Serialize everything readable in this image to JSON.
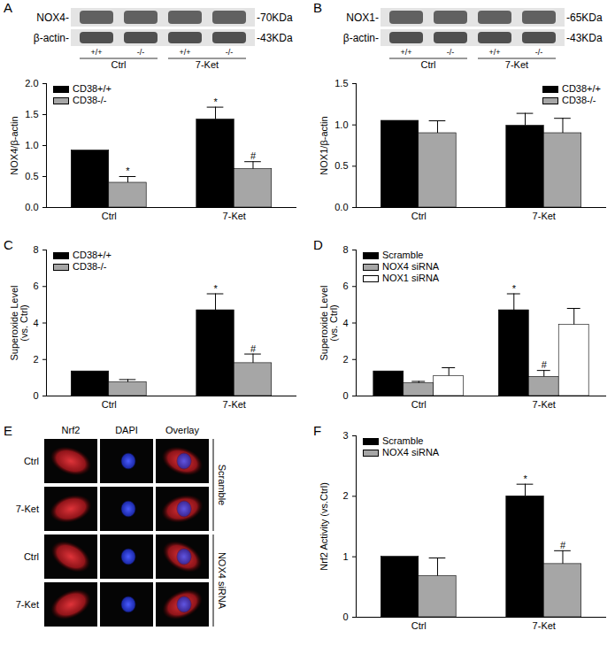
{
  "chart_data": [
    {
      "type": "bar",
      "y_label": "NOX4/β-actin",
      "categories": [
        "Ctrl",
        "7-Ket"
      ],
      "ylim": [
        0,
        2
      ],
      "yticks": [
        {
          "value": 0,
          "label": "0.0"
        },
        0.5,
        {
          "value": 1,
          "label": "1.0"
        },
        1.5,
        {
          "value": 2,
          "label": "2.0"
        }
      ],
      "legend": "top-left",
      "series": [
        {
          "name": "CD38+/+",
          "color": "#000000",
          "values": [
            0.92,
            1.42
          ],
          "errors": [
            null,
            0.2
          ],
          "annotations": [
            null,
            "*"
          ]
        },
        {
          "name": "CD38-/-",
          "color": "#a6a6a6",
          "values": [
            0.4,
            0.62
          ],
          "errors": [
            0.1,
            0.12
          ],
          "annotations": [
            "*",
            "#"
          ]
        }
      ]
    },
    {
      "type": "bar",
      "y_label": "NOX1/β-actin",
      "categories": [
        "Ctrl",
        "7-Ket"
      ],
      "ylim": [
        0,
        1.5
      ],
      "yticks": [
        {
          "value": 0,
          "label": "0.0"
        },
        0.5,
        {
          "value": 1,
          "label": "1.0"
        },
        1.5
      ],
      "legend": "top-right",
      "series": [
        {
          "name": "CD38+/+",
          "color": "#000000",
          "values": [
            1.05,
            0.99
          ],
          "errors": [
            null,
            0.15
          ]
        },
        {
          "name": "CD38-/-",
          "color": "#a6a6a6",
          "values": [
            0.9,
            0.9
          ],
          "errors": [
            0.15,
            0.18
          ]
        }
      ]
    },
    {
      "type": "bar",
      "panel": "C",
      "y_label": "Superoxide Level\n(vs. Ctrl)",
      "categories": [
        "Ctrl",
        "7-Ket"
      ],
      "ylim": [
        0,
        8
      ],
      "yticks": [
        0,
        2,
        4,
        6,
        8
      ],
      "legend": "top-left",
      "series": [
        {
          "name": "CD38+/+",
          "color": "#000000",
          "values": [
            1.35,
            4.7
          ],
          "errors": [
            null,
            0.9
          ],
          "annotations": [
            null,
            "*"
          ]
        },
        {
          "name": "CD38-/-",
          "color": "#a6a6a6",
          "values": [
            0.75,
            1.8
          ],
          "errors": [
            0.15,
            0.5
          ],
          "annotations": [
            null,
            "#"
          ]
        }
      ]
    },
    {
      "type": "bar",
      "panel": "D",
      "y_label": "Superoxide Level\n(vs. Ctrl)",
      "categories": [
        "Ctrl",
        "7-Ket"
      ],
      "ylim": [
        0,
        8
      ],
      "yticks": [
        0,
        2,
        4,
        6,
        8
      ],
      "legend": "top-left",
      "series": [
        {
          "name": "Scramble",
          "color": "#000000",
          "values": [
            1.35,
            4.7
          ],
          "errors": [
            null,
            0.9
          ],
          "annotations": [
            null,
            "*"
          ]
        },
        {
          "name": "NOX4 siRNA",
          "color": "#a6a6a6",
          "values": [
            0.7,
            1.05
          ],
          "errors": [
            0.1,
            0.35
          ],
          "annotations": [
            null,
            "#"
          ]
        },
        {
          "name": "NOX1 siRNA",
          "color": "#ffffff",
          "values": [
            1.1,
            3.9
          ],
          "errors": [
            0.45,
            0.9
          ]
        }
      ]
    },
    {
      "type": "bar",
      "panel": "F",
      "y_label": "Nrf2 Activity (vs.Ctrl)",
      "categories": [
        "Ctrl",
        "7-Ket"
      ],
      "ylim": [
        0,
        3
      ],
      "yticks": [
        0,
        1,
        2,
        3
      ],
      "legend": "top-left",
      "series": [
        {
          "name": "Scramble",
          "color": "#000000",
          "values": [
            1.0,
            2.0
          ],
          "errors": [
            null,
            0.2
          ],
          "annotations": [
            null,
            "*"
          ]
        },
        {
          "name": "NOX4 siRNA",
          "color": "#a6a6a6",
          "values": [
            0.68,
            0.88
          ],
          "errors": [
            0.3,
            0.22
          ],
          "annotations": [
            null,
            "#"
          ]
        }
      ]
    }
  ],
  "blots": [
    {
      "panel": "A",
      "rows": [
        {
          "label": "NOX4-",
          "size": "-70KDa"
        },
        {
          "label": "β-actin-",
          "size": "-43KDa"
        }
      ],
      "lanes": [
        "+/+",
        "-/-",
        "+/+",
        "-/-"
      ],
      "groups": [
        "Ctrl",
        "7-Ket"
      ]
    },
    {
      "panel": "B",
      "rows": [
        {
          "label": "NOX1-",
          "size": "-65KDa"
        },
        {
          "label": "β-actin-",
          "size": "-43KDa"
        }
      ],
      "lanes": [
        "+/+",
        "-/-",
        "+/+",
        "-/-"
      ],
      "groups": [
        "Ctrl",
        "7-Ket"
      ]
    }
  ],
  "images": {
    "panel": "E",
    "columns": [
      "Nrf2",
      "DAPI",
      "Overlay"
    ],
    "rows": [
      {
        "label": "Ctrl",
        "group": "Scramble"
      },
      {
        "label": "7-Ket",
        "group": "Scramble"
      },
      {
        "label": "Ctrl",
        "group": "NOX4 siRNA"
      },
      {
        "label": "7-Ket",
        "group": "NOX4 siRNA"
      }
    ]
  }
}
